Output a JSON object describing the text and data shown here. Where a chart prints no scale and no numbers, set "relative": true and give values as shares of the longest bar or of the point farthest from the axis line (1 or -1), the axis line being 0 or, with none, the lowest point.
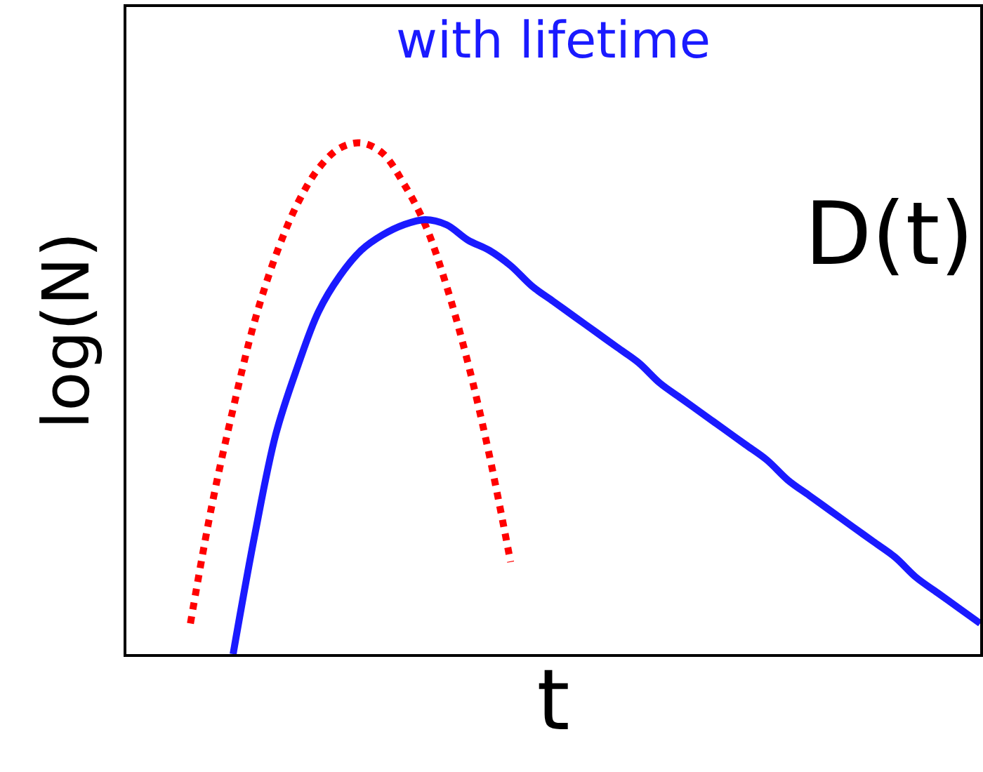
{
  "chart_data": {
    "type": "line",
    "relative": true,
    "xlabel": "t",
    "ylabel": "log(N)",
    "grid": false,
    "marker": "none",
    "annotations": [
      "with lifetime",
      "D(t)"
    ],
    "categories": [
      null,
      null,
      null,
      null,
      null,
      null,
      null,
      null,
      null,
      null,
      null,
      null,
      null,
      null,
      null,
      null,
      null,
      null,
      null,
      null,
      null,
      null,
      null,
      null,
      null,
      null,
      null,
      null,
      null,
      null,
      null,
      null,
      null,
      null,
      null,
      null,
      null,
      null,
      null,
      null,
      null
    ],
    "series": [
      {
        "color": "#ff0000",
        "line_style": "dotted",
        "values": [
          null,
          null,
          null,
          0.06,
          0.29,
          0.48,
          0.65,
          0.78,
          0.88,
          0.95,
          0.99,
          1,
          0.98,
          0.92,
          0.84,
          0.72,
          0.57,
          0.39,
          0.18,
          null,
          null,
          null,
          null,
          null,
          null,
          null,
          null,
          null,
          null,
          null,
          null,
          null,
          null,
          null,
          null,
          null,
          null,
          null,
          null,
          null,
          null
        ]
      },
      {
        "color": "#1a1aff",
        "line_style": "solid",
        "values": [
          null,
          null,
          null,
          null,
          null,
          0,
          0.23,
          0.43,
          0.56,
          0.67,
          0.74,
          0.79,
          0.82,
          0.84,
          0.85,
          0.84,
          0.81,
          0.79,
          0.76,
          0.72,
          0.69,
          0.66,
          0.63,
          0.6,
          0.57,
          0.53,
          0.5,
          0.47,
          0.44,
          0.41,
          0.38,
          0.34,
          0.31,
          0.28,
          0.25,
          0.22,
          0.19,
          0.15,
          0.12,
          0.09,
          0.06
        ]
      }
    ]
  }
}
